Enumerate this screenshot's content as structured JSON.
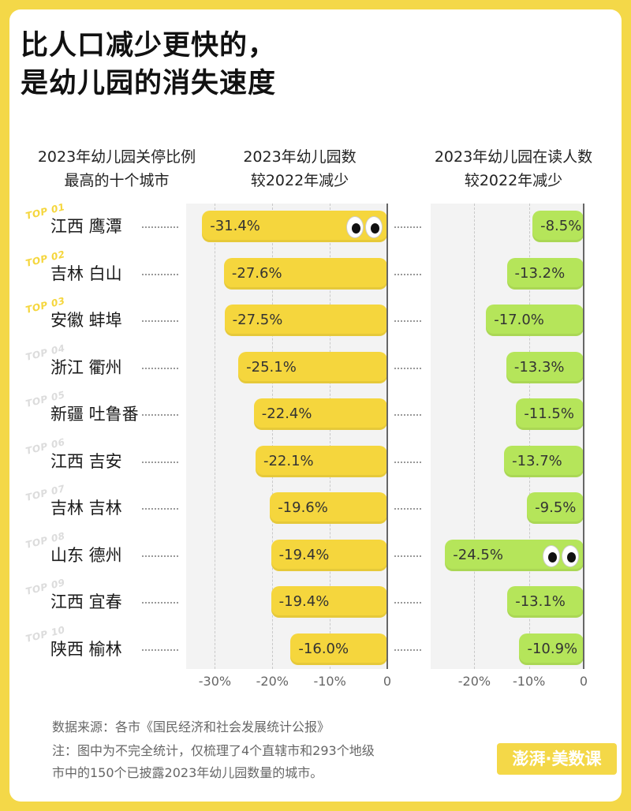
{
  "title": {
    "line1": "比人口减少更快的，",
    "line2": "是幼儿园的消失速度"
  },
  "headers": {
    "cities_line1": "2023年幼儿园关停比例",
    "cities_line2": "最高的十个城市",
    "chart1_line1": "2023年幼儿园数",
    "chart1_line2": "较2022年减少",
    "chart2_line1": "2023年幼儿园在读人数",
    "chart2_line2": "较2022年减少"
  },
  "cities": [
    {
      "name": "江西 鹰潭",
      "rank": "TOP 01"
    },
    {
      "name": "吉林 白山",
      "rank": "TOP 02"
    },
    {
      "name": "安徽 蚌埠",
      "rank": "TOP 03"
    },
    {
      "name": "浙江 衢州",
      "rank": "TOP 04"
    },
    {
      "name": "新疆 吐鲁番",
      "rank": "TOP 05"
    },
    {
      "name": "江西 吉安",
      "rank": "TOP 06"
    },
    {
      "name": "吉林 吉林",
      "rank": "TOP 07"
    },
    {
      "name": "山东 德州",
      "rank": "TOP 08"
    },
    {
      "name": "江西 宜春",
      "rank": "TOP 09"
    },
    {
      "name": "陕西 榆林",
      "rank": "TOP 10"
    }
  ],
  "colors": {
    "kindergarten_bar": "#f5d63d",
    "enrollment_bar": "#b5e55a",
    "rank_top3": "#f5d63d",
    "rank_other": "#dcdcdc",
    "background": "#f4d848"
  },
  "chart_data": [
    {
      "type": "bar",
      "orientation": "horizontal",
      "title": "2023年幼儿园数较2022年减少",
      "categories": [
        "江西 鹰潭",
        "吉林 白山",
        "安徽 蚌埠",
        "浙江 衢州",
        "新疆 吐鲁番",
        "江西 吉安",
        "吉林 吉林",
        "山东 德州",
        "江西 宜春",
        "陕西 榆林"
      ],
      "values": [
        -31.4,
        -27.6,
        -27.5,
        -25.1,
        -22.4,
        -22.1,
        -19.6,
        -19.4,
        -19.4,
        -16.0
      ],
      "data_labels": [
        "-31.4%",
        "-27.6%",
        "-27.5%",
        "-25.1%",
        "-22.4%",
        "-22.1%",
        "-19.6%",
        "-19.4%",
        "-19.4%",
        "-16.0%"
      ],
      "xlim": [
        -35,
        0
      ],
      "ticks": [
        -30,
        -20,
        -10,
        0
      ],
      "tick_labels": [
        "-30%",
        "-20%",
        "-10%",
        "0"
      ],
      "grid": true
    },
    {
      "type": "bar",
      "orientation": "horizontal",
      "title": "2023年幼儿园在读人数较2022年减少",
      "categories": [
        "江西 鹰潭",
        "吉林 白山",
        "安徽 蚌埠",
        "浙江 衢州",
        "新疆 吐鲁番",
        "江西 吉安",
        "吉林 吉林",
        "山东 德州",
        "江西 宜春",
        "陕西 榆林"
      ],
      "values": [
        -8.5,
        -13.2,
        -17.0,
        -13.3,
        -11.5,
        -13.7,
        -9.5,
        -24.5,
        -13.1,
        -10.9
      ],
      "data_labels": [
        "-8.5%",
        "-13.2%",
        "-17.0%",
        "-13.3%",
        "-11.5%",
        "-13.7%",
        "-9.5%",
        "-24.5%",
        "-13.1%",
        "-10.9%"
      ],
      "xlim": [
        -28,
        0
      ],
      "ticks": [
        -20,
        -10,
        0
      ],
      "tick_labels": [
        "-20%",
        "-10%",
        "0"
      ],
      "grid": true
    }
  ],
  "footnotes": {
    "source": "数据来源：各市《国民经济和社会发展统计公报》",
    "note_line1": "注：图中为不完全统计，仅梳理了4个直辖市和293个地级",
    "note_line2": "市中的150个已披露2023年幼儿园数量的城市。"
  },
  "logo_text": "澎湃·美数课"
}
